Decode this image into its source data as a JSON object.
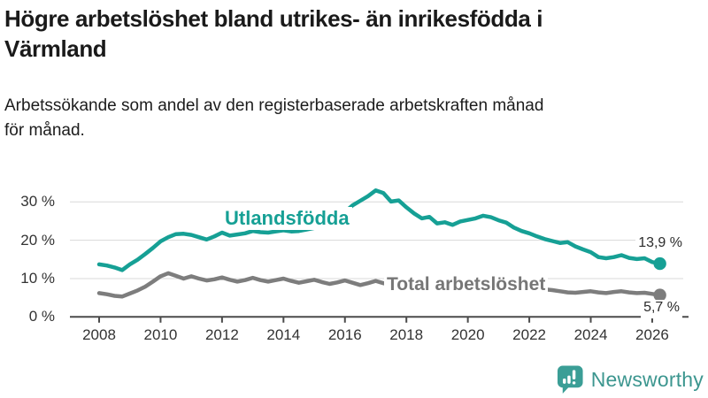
{
  "header": {
    "title": "Högre arbetslöshet bland utrikes- än inrikesfödda i Värmland",
    "title_lines": [
      "Högre arbetslöshet bland utrikes- än inrikesfödda i",
      "Värmland"
    ],
    "subtitle": "Arbetssökande som andel av den registerbaserade arbetskraften månad för månad.",
    "subtitle_lines": [
      "Arbetssökande som andel av den registerbaserade arbetskraften månad",
      "för månad."
    ]
  },
  "chart_data": {
    "type": "line",
    "title": "Högre arbetslöshet bland utrikes- än inrikesfödda i Värmland",
    "subtitle": "Arbetssökande som andel av den registerbaserade arbetskraften månad för månad.",
    "x_ticks": [
      2008,
      2010,
      2012,
      2014,
      2016,
      2018,
      2020,
      2022,
      2024,
      2026
    ],
    "y_ticks": [
      0,
      10,
      20,
      30
    ],
    "y_tick_suffix": " %",
    "x_range": [
      2008,
      2026.25
    ],
    "ylim": [
      0,
      35
    ],
    "grid": "horizontal",
    "legend_position": "inline-labels",
    "colors": {
      "utlandsfodda": "#16a095",
      "total": "#7d7d7d",
      "grid": "#d9d9d9",
      "axis": "#4a4a4a",
      "text": "#333333"
    },
    "series": [
      {
        "name": "Utlandsfödda",
        "color": "#16a095",
        "end_value": 13.9,
        "end_label": "13,9 %",
        "points": [
          [
            2008.0,
            13.7
          ],
          [
            2008.25,
            13.4
          ],
          [
            2008.5,
            12.9
          ],
          [
            2008.75,
            12.2
          ],
          [
            2009.0,
            13.7
          ],
          [
            2009.25,
            14.9
          ],
          [
            2009.5,
            16.4
          ],
          [
            2009.75,
            18.0
          ],
          [
            2010.0,
            19.7
          ],
          [
            2010.25,
            20.8
          ],
          [
            2010.5,
            21.6
          ],
          [
            2010.75,
            21.7
          ],
          [
            2011.0,
            21.4
          ],
          [
            2011.25,
            20.8
          ],
          [
            2011.5,
            20.2
          ],
          [
            2011.75,
            21.0
          ],
          [
            2012.0,
            22.0
          ],
          [
            2012.25,
            21.2
          ],
          [
            2012.5,
            21.5
          ],
          [
            2012.75,
            21.8
          ],
          [
            2013.0,
            22.4
          ],
          [
            2013.25,
            22.1
          ],
          [
            2013.5,
            22.0
          ],
          [
            2013.75,
            22.3
          ],
          [
            2014.0,
            22.6
          ],
          [
            2014.25,
            22.3
          ],
          [
            2014.5,
            22.4
          ],
          [
            2014.75,
            22.8
          ],
          [
            2015.0,
            23.2
          ],
          [
            2015.25,
            23.4
          ],
          [
            2015.5,
            23.9
          ],
          [
            2015.75,
            25.2
          ],
          [
            2016.0,
            27.4
          ],
          [
            2016.25,
            29.1
          ],
          [
            2016.5,
            30.3
          ],
          [
            2016.75,
            31.5
          ],
          [
            2017.0,
            33.0
          ],
          [
            2017.25,
            32.3
          ],
          [
            2017.5,
            30.1
          ],
          [
            2017.75,
            30.4
          ],
          [
            2018.0,
            28.6
          ],
          [
            2018.25,
            27.0
          ],
          [
            2018.5,
            25.7
          ],
          [
            2018.75,
            26.1
          ],
          [
            2019.0,
            24.4
          ],
          [
            2019.25,
            24.7
          ],
          [
            2019.5,
            24.0
          ],
          [
            2019.75,
            24.9
          ],
          [
            2020.0,
            25.3
          ],
          [
            2020.25,
            25.7
          ],
          [
            2020.5,
            26.4
          ],
          [
            2020.75,
            26.0
          ],
          [
            2021.0,
            25.2
          ],
          [
            2021.25,
            24.6
          ],
          [
            2021.5,
            23.3
          ],
          [
            2021.75,
            22.4
          ],
          [
            2022.0,
            21.8
          ],
          [
            2022.25,
            21.0
          ],
          [
            2022.5,
            20.3
          ],
          [
            2022.75,
            19.8
          ],
          [
            2023.0,
            19.3
          ],
          [
            2023.25,
            19.5
          ],
          [
            2023.5,
            18.4
          ],
          [
            2023.75,
            17.6
          ],
          [
            2024.0,
            16.9
          ],
          [
            2024.25,
            15.6
          ],
          [
            2024.5,
            15.3
          ],
          [
            2024.75,
            15.6
          ],
          [
            2025.0,
            16.1
          ],
          [
            2025.25,
            15.4
          ],
          [
            2025.5,
            15.1
          ],
          [
            2025.75,
            15.3
          ],
          [
            2026.0,
            14.3
          ],
          [
            2026.25,
            13.9
          ]
        ]
      },
      {
        "name": "Total arbetslöshet",
        "color": "#7d7d7d",
        "end_value": 5.7,
        "end_label": "5,7 %",
        "points": [
          [
            2008.0,
            6.2
          ],
          [
            2008.25,
            5.9
          ],
          [
            2008.5,
            5.5
          ],
          [
            2008.75,
            5.3
          ],
          [
            2009.0,
            6.1
          ],
          [
            2009.25,
            6.9
          ],
          [
            2009.5,
            7.9
          ],
          [
            2009.75,
            9.2
          ],
          [
            2010.0,
            10.6
          ],
          [
            2010.25,
            11.4
          ],
          [
            2010.5,
            10.7
          ],
          [
            2010.75,
            10.0
          ],
          [
            2011.0,
            10.6
          ],
          [
            2011.25,
            10.0
          ],
          [
            2011.5,
            9.5
          ],
          [
            2011.75,
            9.8
          ],
          [
            2012.0,
            10.3
          ],
          [
            2012.25,
            9.7
          ],
          [
            2012.5,
            9.2
          ],
          [
            2012.75,
            9.6
          ],
          [
            2013.0,
            10.2
          ],
          [
            2013.25,
            9.6
          ],
          [
            2013.5,
            9.2
          ],
          [
            2013.75,
            9.6
          ],
          [
            2014.0,
            10.0
          ],
          [
            2014.25,
            9.4
          ],
          [
            2014.5,
            8.9
          ],
          [
            2014.75,
            9.3
          ],
          [
            2015.0,
            9.7
          ],
          [
            2015.25,
            9.1
          ],
          [
            2015.5,
            8.6
          ],
          [
            2015.75,
            9.0
          ],
          [
            2016.0,
            9.5
          ],
          [
            2016.25,
            8.9
          ],
          [
            2016.5,
            8.3
          ],
          [
            2016.75,
            8.8
          ],
          [
            2017.0,
            9.4
          ],
          [
            2017.25,
            8.8
          ],
          [
            2017.5,
            8.3
          ],
          [
            2017.75,
            8.7
          ],
          [
            2018.0,
            9.2
          ],
          [
            2018.25,
            8.6
          ],
          [
            2018.5,
            8.2
          ],
          [
            2018.75,
            8.5
          ],
          [
            2019.0,
            8.9
          ],
          [
            2019.25,
            8.5
          ],
          [
            2019.5,
            8.1
          ],
          [
            2019.75,
            8.4
          ],
          [
            2020.0,
            8.7
          ],
          [
            2020.25,
            9.1
          ],
          [
            2020.5,
            9.4
          ],
          [
            2020.75,
            9.0
          ],
          [
            2021.0,
            9.2
          ],
          [
            2021.25,
            8.7
          ],
          [
            2021.5,
            8.2
          ],
          [
            2021.75,
            7.9
          ],
          [
            2022.0,
            8.1
          ],
          [
            2022.25,
            7.6
          ],
          [
            2022.5,
            7.2
          ],
          [
            2022.75,
            7.0
          ],
          [
            2023.0,
            6.7
          ],
          [
            2023.25,
            6.4
          ],
          [
            2023.5,
            6.3
          ],
          [
            2023.75,
            6.5
          ],
          [
            2024.0,
            6.7
          ],
          [
            2024.25,
            6.4
          ],
          [
            2024.5,
            6.2
          ],
          [
            2024.75,
            6.5
          ],
          [
            2025.0,
            6.7
          ],
          [
            2025.25,
            6.4
          ],
          [
            2025.5,
            6.2
          ],
          [
            2025.75,
            6.3
          ],
          [
            2026.0,
            6.0
          ],
          [
            2026.25,
            5.7
          ]
        ]
      }
    ]
  },
  "footer": {
    "brand": "Newsworthy",
    "brand_color": "#3c968f",
    "icon_color": "#3b9e96",
    "icon": "bar-chart-speech-bubble"
  }
}
